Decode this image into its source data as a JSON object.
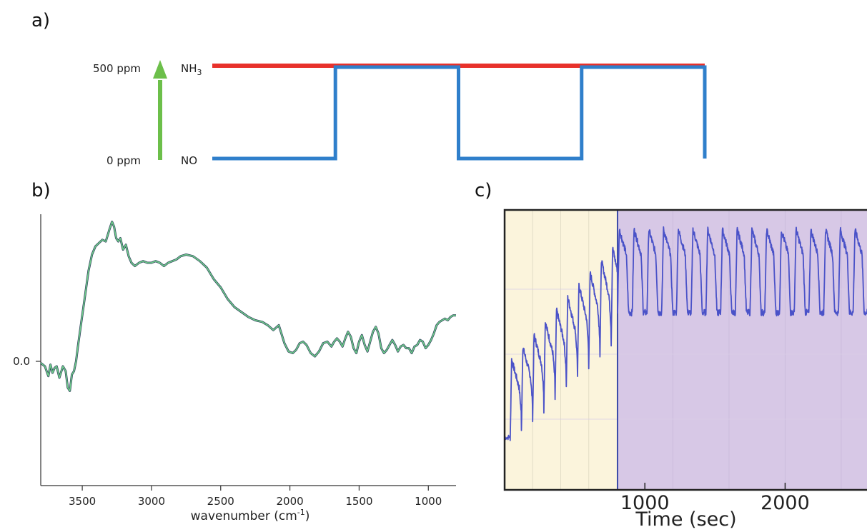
{
  "panels": {
    "a": "a)",
    "b": "b)",
    "c": "c)"
  },
  "chart_data": [
    {
      "type": "line",
      "panel": "a",
      "y_ticks": [
        "500 ppm",
        "0 ppm"
      ],
      "labels": {
        "high": "NH",
        "high_sub": "3",
        "low": "NO"
      },
      "arrow_color": "#6cbf4a",
      "series": [
        {
          "color": "#e8312b",
          "x": [
            0,
            10
          ],
          "y": [
            500,
            500
          ]
        },
        {
          "color": "#2f7fcb",
          "x": [
            0,
            2.5,
            2.5,
            5,
            5,
            7.5,
            7.5,
            10,
            10
          ],
          "y": [
            0,
            0,
            500,
            500,
            0,
            0,
            500,
            500,
            0
          ]
        }
      ]
    },
    {
      "type": "line",
      "panel": "b",
      "x_reversed": true,
      "xlim": [
        3800,
        800
      ],
      "xticks": [
        3500,
        3000,
        2500,
        2000,
        1500,
        1000
      ],
      "xlabel": "wavenumber (cm",
      "xlabel_sup": "-1",
      "xlabel_tail": ")",
      "ytick_label": "0.0",
      "line_color": "#6fcf8a",
      "x": [
        3800,
        3770,
        3745,
        3730,
        3715,
        3700,
        3685,
        3665,
        3640,
        3620,
        3605,
        3590,
        3575,
        3560,
        3545,
        3530,
        3505,
        3480,
        3455,
        3430,
        3405,
        3380,
        3355,
        3330,
        3305,
        3285,
        3270,
        3255,
        3240,
        3225,
        3205,
        3185,
        3165,
        3145,
        3120,
        3090,
        3060,
        3030,
        3000,
        2970,
        2940,
        2910,
        2880,
        2850,
        2820,
        2790,
        2750,
        2700,
        2650,
        2600,
        2550,
        2500,
        2450,
        2400,
        2350,
        2300,
        2250,
        2200,
        2160,
        2120,
        2080,
        2040,
        2010,
        1980,
        1955,
        1930,
        1905,
        1880,
        1850,
        1820,
        1790,
        1760,
        1730,
        1700,
        1680,
        1660,
        1640,
        1620,
        1600,
        1580,
        1560,
        1540,
        1520,
        1500,
        1480,
        1460,
        1440,
        1420,
        1400,
        1380,
        1360,
        1340,
        1320,
        1300,
        1280,
        1260,
        1240,
        1220,
        1200,
        1180,
        1160,
        1140,
        1120,
        1100,
        1080,
        1060,
        1040,
        1020,
        1000,
        980,
        960,
        940,
        920,
        900,
        880,
        860,
        840,
        820,
        800
      ],
      "y": [
        -0.01,
        -0.03,
        -0.09,
        -0.02,
        -0.07,
        -0.04,
        -0.03,
        -0.1,
        -0.03,
        -0.06,
        -0.16,
        -0.18,
        -0.08,
        -0.06,
        0.0,
        0.1,
        0.25,
        0.4,
        0.55,
        0.65,
        0.7,
        0.72,
        0.74,
        0.73,
        0.8,
        0.85,
        0.82,
        0.75,
        0.73,
        0.75,
        0.68,
        0.71,
        0.64,
        0.6,
        0.58,
        0.6,
        0.61,
        0.6,
        0.6,
        0.61,
        0.6,
        0.58,
        0.6,
        0.61,
        0.62,
        0.64,
        0.65,
        0.64,
        0.61,
        0.57,
        0.5,
        0.45,
        0.38,
        0.33,
        0.3,
        0.27,
        0.25,
        0.24,
        0.22,
        0.19,
        0.22,
        0.11,
        0.06,
        0.05,
        0.07,
        0.11,
        0.12,
        0.1,
        0.05,
        0.03,
        0.06,
        0.11,
        0.12,
        0.09,
        0.12,
        0.14,
        0.12,
        0.09,
        0.14,
        0.18,
        0.15,
        0.08,
        0.05,
        0.12,
        0.16,
        0.1,
        0.06,
        0.12,
        0.18,
        0.21,
        0.17,
        0.08,
        0.05,
        0.07,
        0.1,
        0.13,
        0.1,
        0.06,
        0.09,
        0.1,
        0.08,
        0.08,
        0.05,
        0.09,
        0.1,
        0.13,
        0.12,
        0.08,
        0.1,
        0.13,
        0.17,
        0.22,
        0.24,
        0.25,
        0.26,
        0.25,
        0.27,
        0.28,
        0.28
      ]
    },
    {
      "type": "line",
      "panel": "c",
      "xlim": [
        0,
        2650
      ],
      "xticks": [
        1000,
        2000
      ],
      "xlabel": "Time (sec)",
      "line_color": "#4a52c8",
      "regions": [
        {
          "from": 0,
          "to": 805,
          "color": "#fbf4dc"
        },
        {
          "from": 805,
          "to": 2650,
          "color": "#d7c8e6"
        }
      ],
      "ylim": [
        0,
        1
      ],
      "phase1": {
        "start": 0,
        "end": 805,
        "period": 80,
        "base_start": 0.2,
        "base_end": 0.62,
        "peak_start": 0.45,
        "peak_end": 0.93
      },
      "phase2": {
        "start": 805,
        "end": 2650,
        "period": 105,
        "base": 0.66,
        "peak": 0.98
      }
    }
  ]
}
